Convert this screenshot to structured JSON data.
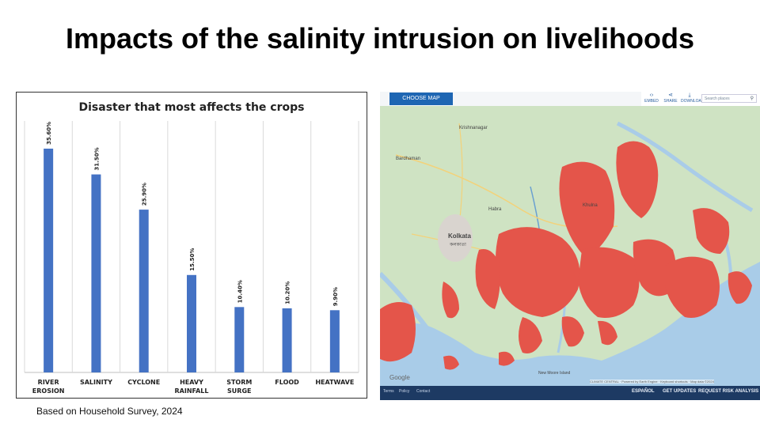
{
  "slide": {
    "title": "Impacts of the salinity intrusion on livelihoods",
    "caption": "Based on Household Survey, 2024"
  },
  "chart_data": {
    "type": "bar",
    "title": "Disaster that most affects the crops",
    "categories": [
      [
        "RIVER",
        "EROSION"
      ],
      [
        "SALINITY"
      ],
      [
        "CYCLONE"
      ],
      [
        "HEAVY",
        "RAINFALL"
      ],
      [
        "STORM",
        "SURGE"
      ],
      [
        "FLOOD"
      ],
      [
        "HEATWAVE"
      ]
    ],
    "values": [
      35.6,
      31.5,
      25.9,
      15.5,
      10.4,
      10.2,
      9.9
    ],
    "data_labels": [
      "35.60%",
      "31.50%",
      "25.90%",
      "15.50%",
      "10.40%",
      "10.20%",
      "9.90%"
    ],
    "ylim": [
      0,
      40
    ],
    "xlabel": "",
    "ylabel": "",
    "bar_color": "#4472c4",
    "grid": "vertical category separators",
    "legend": "none"
  },
  "map": {
    "choose_map_label": "CHOOSE MAP",
    "tools": [
      {
        "name": "embed",
        "icon": "code-icon",
        "glyph": "‹›",
        "label": "EMBED"
      },
      {
        "name": "share",
        "icon": "share-icon",
        "glyph": "⋖",
        "label": "SHARE"
      },
      {
        "name": "download",
        "icon": "download-icon",
        "glyph": "⤓",
        "label": "DOWNLOAD"
      }
    ],
    "search_placeholder": "Search places",
    "places": [
      {
        "label": "Krishnanagar"
      },
      {
        "label": "Bardhaman"
      },
      {
        "label": "Kolkata"
      },
      {
        "label": "কলকাতা"
      },
      {
        "label": "Habra"
      },
      {
        "label": "Khulna"
      },
      {
        "label": "New Moore Island"
      }
    ],
    "attribution": "CLIMATE CENTRAL  ·  Powered by Earth Engine  ·  Keyboard shortcuts  ·  Map data ©2024",
    "footer_left": [
      "Terms",
      "Policy",
      "Contact"
    ],
    "footer_right": [
      "ESPAÑOL",
      "GET UPDATES",
      "REQUEST RISK ANALYSIS"
    ],
    "google_label": "Google",
    "colors": {
      "land": "#cfe3c3",
      "water": "#a9cce8",
      "risk": "#e4554a",
      "footer": "#1d3a63"
    }
  }
}
